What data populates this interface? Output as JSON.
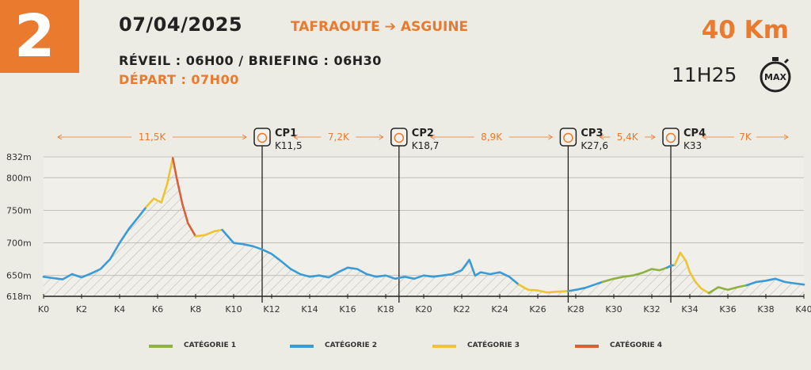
{
  "header": {
    "stage_number": "2",
    "date": "07/04/2025",
    "route": "TAFRAOUTE ➔ ASGUINE",
    "reveil": "RÉVEIL : 06H00 / BRIEFING : 06H30",
    "depart": "DÉPART : 07H00",
    "distance": "40 Km",
    "max_time": "11H25",
    "max_label": "MAX"
  },
  "colors": {
    "accent": "#ea7a2e",
    "categorie_1": "#8fb042",
    "categorie_2": "#3a9bd5",
    "categorie_3": "#ecc434",
    "categorie_4": "#d9613a"
  },
  "chart_data": {
    "type": "line",
    "title": "",
    "xlabel": "",
    "ylabel": "",
    "xlim": [
      0,
      40
    ],
    "ylim": [
      618,
      832
    ],
    "x_ticks": [
      {
        "value": 0,
        "label": "K0"
      },
      {
        "value": 2,
        "label": "K2"
      },
      {
        "value": 4,
        "label": "K4"
      },
      {
        "value": 6,
        "label": "K6"
      },
      {
        "value": 8,
        "label": "K8"
      },
      {
        "value": 10,
        "label": "K10"
      },
      {
        "value": 12,
        "label": "K12"
      },
      {
        "value": 14,
        "label": "K14"
      },
      {
        "value": 16,
        "label": "K16"
      },
      {
        "value": 18,
        "label": "K18"
      },
      {
        "value": 20,
        "label": "K20"
      },
      {
        "value": 22,
        "label": "K22"
      },
      {
        "value": 24,
        "label": "K24"
      },
      {
        "value": 26,
        "label": "K26"
      },
      {
        "value": 28,
        "label": "K28"
      },
      {
        "value": 30,
        "label": "K30"
      },
      {
        "value": 32,
        "label": "K32"
      },
      {
        "value": 34,
        "label": "K34"
      },
      {
        "value": 36,
        "label": "K36"
      },
      {
        "value": 38,
        "label": "K38"
      },
      {
        "value": 40,
        "label": "K40"
      }
    ],
    "y_ticks": [
      {
        "value": 618,
        "label": "618m"
      },
      {
        "value": 650,
        "label": "650m"
      },
      {
        "value": 700,
        "label": "700m"
      },
      {
        "value": 750,
        "label": "750m"
      },
      {
        "value": 800,
        "label": "800m"
      },
      {
        "value": 832,
        "label": "832m"
      }
    ],
    "checkpoints": [
      {
        "name": "CP1",
        "km_label": "K11,5",
        "x": 11.5
      },
      {
        "name": "CP2",
        "km_label": "K18,7",
        "x": 18.7
      },
      {
        "name": "CP3",
        "km_label": "K27,6",
        "x": 27.6
      },
      {
        "name": "CP4",
        "km_label": "K33",
        "x": 33
      }
    ],
    "segment_distances": [
      {
        "label": "11,5K",
        "from": 0,
        "to": 11.5
      },
      {
        "label": "7,2K",
        "from": 11.5,
        "to": 18.7
      },
      {
        "label": "8,9K",
        "from": 18.7,
        "to": 27.6
      },
      {
        "label": "5,4K",
        "from": 27.6,
        "to": 33
      },
      {
        "label": "7K",
        "from": 33,
        "to": 40
      }
    ],
    "series": [
      {
        "name": "CATÉGORIE 2",
        "color": "#3a9bd5",
        "points": [
          [
            0,
            648
          ],
          [
            0.5,
            646
          ],
          [
            1,
            644
          ],
          [
            1.5,
            652
          ],
          [
            2,
            647
          ],
          [
            2.5,
            653
          ],
          [
            3,
            660
          ],
          [
            3.5,
            675
          ],
          [
            4,
            700
          ],
          [
            4.5,
            722
          ],
          [
            5,
            740
          ],
          [
            5.4,
            755
          ]
        ]
      },
      {
        "name": "CATÉGORIE 3",
        "color": "#ecc434",
        "points": [
          [
            5.4,
            755
          ],
          [
            5.8,
            768
          ],
          [
            6.2,
            762
          ],
          [
            6.5,
            790
          ],
          [
            6.8,
            830
          ]
        ]
      },
      {
        "name": "CATÉGORIE 4",
        "color": "#d9613a",
        "points": [
          [
            6.8,
            830
          ],
          [
            7,
            800
          ],
          [
            7.3,
            760
          ],
          [
            7.6,
            730
          ],
          [
            8,
            710
          ]
        ]
      },
      {
        "name": "CATÉGORIE 3",
        "color": "#ecc434",
        "points": [
          [
            8,
            710
          ],
          [
            8.5,
            712
          ],
          [
            9,
            718
          ],
          [
            9.4,
            720
          ]
        ]
      },
      {
        "name": "CATÉGORIE 2",
        "color": "#3a9bd5",
        "points": [
          [
            9.4,
            720
          ],
          [
            10,
            700
          ],
          [
            10.5,
            698
          ],
          [
            11,
            695
          ],
          [
            11.5,
            690
          ],
          [
            12,
            683
          ],
          [
            12.5,
            672
          ],
          [
            13,
            660
          ],
          [
            13.5,
            652
          ],
          [
            14,
            648
          ],
          [
            14.5,
            650
          ],
          [
            15,
            647
          ],
          [
            15.5,
            655
          ],
          [
            16,
            662
          ],
          [
            16.5,
            660
          ],
          [
            17,
            652
          ],
          [
            17.5,
            648
          ],
          [
            18,
            650
          ],
          [
            18.5,
            645
          ],
          [
            19,
            648
          ],
          [
            19.5,
            645
          ],
          [
            20,
            650
          ],
          [
            20.5,
            648
          ],
          [
            21,
            650
          ],
          [
            21.5,
            652
          ],
          [
            22,
            658
          ],
          [
            22.4,
            674
          ],
          [
            22.7,
            650
          ],
          [
            23,
            655
          ],
          [
            23.5,
            652
          ],
          [
            24,
            655
          ],
          [
            24.5,
            648
          ],
          [
            25,
            636
          ]
        ]
      },
      {
        "name": "CATÉGORIE 3",
        "color": "#ecc434",
        "points": [
          [
            25,
            636
          ],
          [
            25.5,
            628
          ],
          [
            26,
            627
          ],
          [
            26.5,
            624
          ],
          [
            27,
            625
          ],
          [
            27.6,
            626
          ]
        ]
      },
      {
        "name": "CATÉGORIE 2",
        "color": "#3a9bd5",
        "points": [
          [
            27.6,
            626
          ],
          [
            28,
            628
          ],
          [
            28.5,
            631
          ],
          [
            29,
            636
          ],
          [
            29.4,
            640
          ]
        ]
      },
      {
        "name": "CATÉGORIE 1",
        "color": "#8fb042",
        "points": [
          [
            29.4,
            640
          ],
          [
            30,
            645
          ],
          [
            30.5,
            648
          ],
          [
            31,
            650
          ],
          [
            31.5,
            654
          ],
          [
            32,
            660
          ],
          [
            32.4,
            658
          ],
          [
            32.8,
            662
          ]
        ]
      },
      {
        "name": "CATÉGORIE 2",
        "color": "#3a9bd5",
        "points": [
          [
            32.8,
            662
          ],
          [
            33,
            665
          ],
          [
            33.2,
            666
          ]
        ]
      },
      {
        "name": "CATÉGORIE 3",
        "color": "#ecc434",
        "points": [
          [
            33.2,
            666
          ],
          [
            33.5,
            685
          ],
          [
            33.8,
            672
          ],
          [
            34,
            655
          ],
          [
            34.3,
            640
          ],
          [
            34.6,
            630
          ],
          [
            35,
            623
          ]
        ]
      },
      {
        "name": "CATÉGORIE 1",
        "color": "#8fb042",
        "points": [
          [
            35,
            623
          ],
          [
            35.5,
            632
          ],
          [
            36,
            628
          ],
          [
            36.5,
            632
          ],
          [
            37,
            635
          ]
        ]
      },
      {
        "name": "CATÉGORIE 2",
        "color": "#3a9bd5",
        "points": [
          [
            37,
            635
          ],
          [
            37.5,
            640
          ],
          [
            38,
            642
          ],
          [
            38.5,
            645
          ],
          [
            39,
            640
          ],
          [
            39.5,
            638
          ],
          [
            40,
            636
          ]
        ]
      }
    ]
  },
  "legend": [
    {
      "label": "CATÉGORIE 1",
      "color": "#8fb042"
    },
    {
      "label": "CATÉGORIE 2",
      "color": "#3a9bd5"
    },
    {
      "label": "CATÉGORIE 3",
      "color": "#ecc434"
    },
    {
      "label": "CATÉGORIE 4",
      "color": "#d9613a"
    }
  ]
}
